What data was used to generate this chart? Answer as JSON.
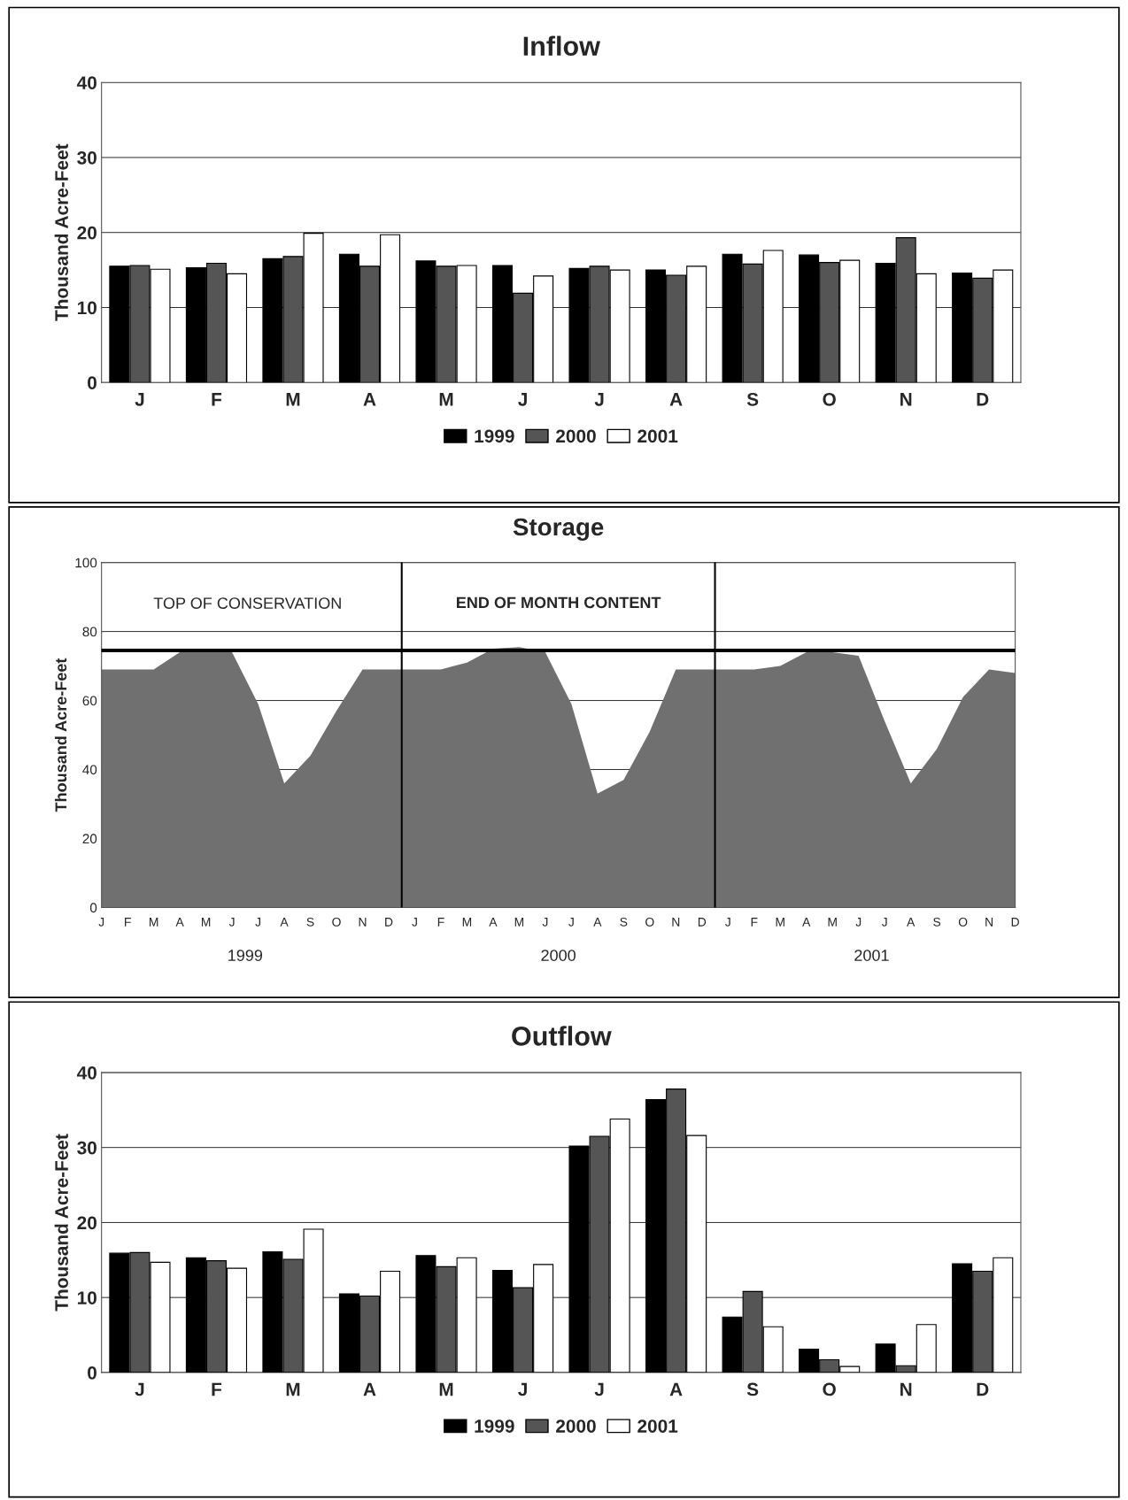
{
  "chart_data": [
    {
      "type": "bar",
      "title": "Inflow",
      "ylabel": "Thousand Acre-Feet",
      "categories": [
        "J",
        "F",
        "M",
        "A",
        "M",
        "J",
        "J",
        "A",
        "S",
        "O",
        "N",
        "D"
      ],
      "ylim": [
        0,
        40
      ],
      "yticks": [
        0,
        10,
        20,
        30,
        40
      ],
      "grid": "y",
      "legend": "bottom",
      "series": [
        {
          "name": "1999",
          "color": "#000000",
          "values": [
            15.5,
            15.3,
            16.5,
            17.1,
            16.2,
            15.6,
            15.2,
            15.0,
            17.1,
            17.0,
            15.9,
            14.6
          ]
        },
        {
          "name": "2000",
          "color": "#555555",
          "values": [
            15.6,
            15.9,
            16.8,
            15.5,
            15.5,
            11.9,
            15.5,
            14.3,
            15.8,
            16.0,
            19.3,
            13.9
          ]
        },
        {
          "name": "2001",
          "color": "#ffffff",
          "values": [
            15.1,
            14.5,
            19.9,
            19.7,
            15.6,
            14.2,
            15.0,
            15.5,
            17.6,
            16.3,
            14.5,
            15.0
          ]
        }
      ]
    },
    {
      "type": "area",
      "title": "Storage",
      "ylabel": "Thousand Acre-Feet",
      "categories": [
        "J",
        "F",
        "M",
        "A",
        "M",
        "J",
        "J",
        "A",
        "S",
        "O",
        "N",
        "D",
        "J",
        "F",
        "M",
        "A",
        "M",
        "J",
        "J",
        "A",
        "S",
        "O",
        "N",
        "D",
        "J",
        "F",
        "M",
        "A",
        "M",
        "J",
        "J",
        "A",
        "S",
        "O",
        "N",
        "D"
      ],
      "ylim": [
        0,
        100
      ],
      "yticks": [
        0,
        20,
        40,
        60,
        80,
        100
      ],
      "grid": "y",
      "series": [
        {
          "color": "#707070",
          "values": [
            69,
            69,
            69,
            74,
            74,
            74,
            59,
            36,
            44,
            57,
            69,
            69,
            69,
            69,
            71,
            75,
            75.5,
            74,
            59,
            33,
            37,
            51,
            69,
            69,
            69,
            69,
            70,
            74,
            74,
            73,
            54,
            36,
            46,
            61,
            69,
            68
          ]
        }
      ],
      "ref_lines": [
        {
          "axis": "y",
          "value": 74.5,
          "label": "TOP OF CONSERVATION",
          "color": "#000000"
        }
      ],
      "annotations": [
        "END OF MONTH CONTENT",
        "1999",
        "2000",
        "2001"
      ]
    },
    {
      "type": "bar",
      "title": "Outflow",
      "ylabel": "Thousand Acre-Feet",
      "categories": [
        "J",
        "F",
        "M",
        "A",
        "M",
        "J",
        "J",
        "A",
        "S",
        "O",
        "N",
        "D"
      ],
      "ylim": [
        0,
        40
      ],
      "yticks": [
        0,
        10,
        20,
        30,
        40
      ],
      "grid": "y",
      "legend": "bottom",
      "series": [
        {
          "name": "1999",
          "color": "#000000",
          "values": [
            15.9,
            15.3,
            16.1,
            10.5,
            15.6,
            13.6,
            30.2,
            36.4,
            7.4,
            3.1,
            3.8,
            14.5
          ]
        },
        {
          "name": "2000",
          "color": "#555555",
          "values": [
            16.0,
            14.9,
            15.1,
            10.2,
            14.1,
            11.3,
            31.5,
            37.8,
            10.8,
            1.7,
            0.9,
            13.5
          ]
        },
        {
          "name": "2001",
          "color": "#ffffff",
          "values": [
            14.7,
            13.9,
            19.1,
            13.5,
            15.3,
            14.4,
            33.8,
            31.6,
            6.1,
            0.8,
            6.4,
            15.3
          ]
        }
      ]
    }
  ]
}
